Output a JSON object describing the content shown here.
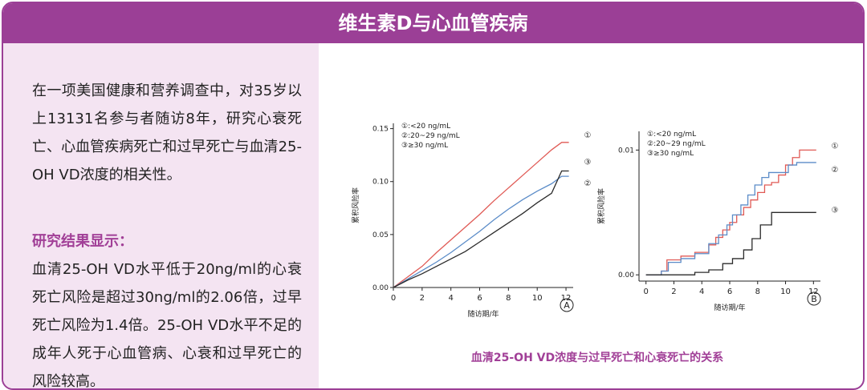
{
  "header": {
    "title": "维生素D与心血管疾病"
  },
  "left": {
    "intro": "在一项美国健康和营养调查中，对35岁以上13131名参与者随访8年，研究心衰死亡、心血管疾病死亡和过早死亡与血清25-OH VD浓度的相关性。",
    "results_heading": "研究结果显示：",
    "results_body": "血清25-OH VD水平低于20ng/ml的心衰死亡风险是超过30ng/ml的2.06倍，过早死亡风险为1.4倍。25-OH VD水平不足的成年人死于心血管病、心衰和过早死亡的风险较高。"
  },
  "caption": "血清25-OH VD浓度与过早死亡和心衰死亡的关系",
  "colors": {
    "accent": "#9b3f96",
    "series1": "#e05a55",
    "series2": "#5b8cc8",
    "series3": "#2b2b2b"
  },
  "chart_data": [
    {
      "type": "line",
      "panel_label": "A",
      "xlabel": "随访期/年",
      "ylabel": "累积风险率",
      "xticks": [
        0,
        2,
        4,
        6,
        8,
        10,
        12
      ],
      "yticks": [
        "0.00",
        "0.05",
        "0.10",
        "0.15"
      ],
      "xlim": [
        0,
        12.5
      ],
      "ylim": [
        0,
        0.155
      ],
      "legend": [
        "①:<20 ng/mL",
        "②:20~29 ng/mL",
        "③≥30 ng/mL"
      ],
      "series": [
        {
          "name": "①",
          "x": [
            0,
            1,
            2,
            3,
            4,
            5,
            6,
            7,
            8,
            9,
            10,
            11,
            11.7,
            12.2
          ],
          "y": [
            0,
            0.01,
            0.02,
            0.033,
            0.045,
            0.057,
            0.069,
            0.082,
            0.094,
            0.106,
            0.118,
            0.13,
            0.137,
            0.137
          ]
        },
        {
          "name": "②",
          "x": [
            0,
            1,
            2,
            3,
            4,
            5,
            6,
            7,
            8,
            9,
            10,
            11,
            11.7,
            12.2
          ],
          "y": [
            0,
            0.008,
            0.016,
            0.024,
            0.033,
            0.043,
            0.053,
            0.064,
            0.074,
            0.083,
            0.091,
            0.098,
            0.105,
            0.105
          ]
        },
        {
          "name": "③",
          "x": [
            0,
            1,
            2,
            3,
            4,
            5,
            6,
            7,
            8,
            9,
            10,
            11,
            11.7,
            12.2
          ],
          "y": [
            0,
            0.007,
            0.013,
            0.02,
            0.027,
            0.034,
            0.043,
            0.052,
            0.061,
            0.07,
            0.08,
            0.089,
            0.11,
            0.11
          ]
        }
      ]
    },
    {
      "type": "line",
      "panel_label": "B",
      "xlabel": "随访期/年",
      "ylabel": "累积风险率",
      "xticks": [
        0,
        2,
        4,
        6,
        8,
        10,
        12
      ],
      "yticks": [
        "0.00",
        "0.01"
      ],
      "xlim": [
        -0.5,
        12.5
      ],
      "ylim": [
        -0.0005,
        0.0115
      ],
      "legend": [
        "①:<20 ng/mL",
        "②:20~29 ng/mL",
        "③≥30 ng/mL"
      ],
      "series": [
        {
          "name": "①",
          "x": [
            0,
            1.1,
            1.5,
            2.5,
            3.5,
            4.5,
            5,
            5.5,
            6,
            6.5,
            7,
            7.5,
            8,
            8.5,
            9,
            9.5,
            10,
            10.5,
            11,
            11.5,
            12.2
          ],
          "y": [
            0,
            0.0003,
            0.0012,
            0.0015,
            0.0018,
            0.0024,
            0.003,
            0.0036,
            0.0042,
            0.0048,
            0.0054,
            0.006,
            0.0066,
            0.0072,
            0.0074,
            0.008,
            0.0088,
            0.0094,
            0.01,
            0.01,
            0.01
          ]
        },
        {
          "name": "②",
          "x": [
            0,
            1.1,
            1.6,
            2.5,
            3.5,
            4.5,
            5.2,
            5.8,
            6.2,
            6.8,
            7.3,
            7.8,
            8.3,
            8.8,
            9.5,
            10.2,
            10.8,
            12.2
          ],
          "y": [
            0,
            0.0003,
            0.001,
            0.0013,
            0.0017,
            0.0025,
            0.0032,
            0.004,
            0.0048,
            0.0056,
            0.0064,
            0.0072,
            0.0078,
            0.0082,
            0.0082,
            0.0088,
            0.009,
            0.009
          ]
        },
        {
          "name": "③",
          "x": [
            0,
            1.2,
            2.5,
            3.5,
            4.5,
            5.5,
            6.2,
            7,
            7.6,
            8.2,
            9,
            12.2
          ],
          "y": [
            0,
            0,
            0,
            0.0002,
            0.0004,
            0.0009,
            0.0013,
            0.002,
            0.0029,
            0.004,
            0.005,
            0.005
          ]
        }
      ]
    }
  ]
}
